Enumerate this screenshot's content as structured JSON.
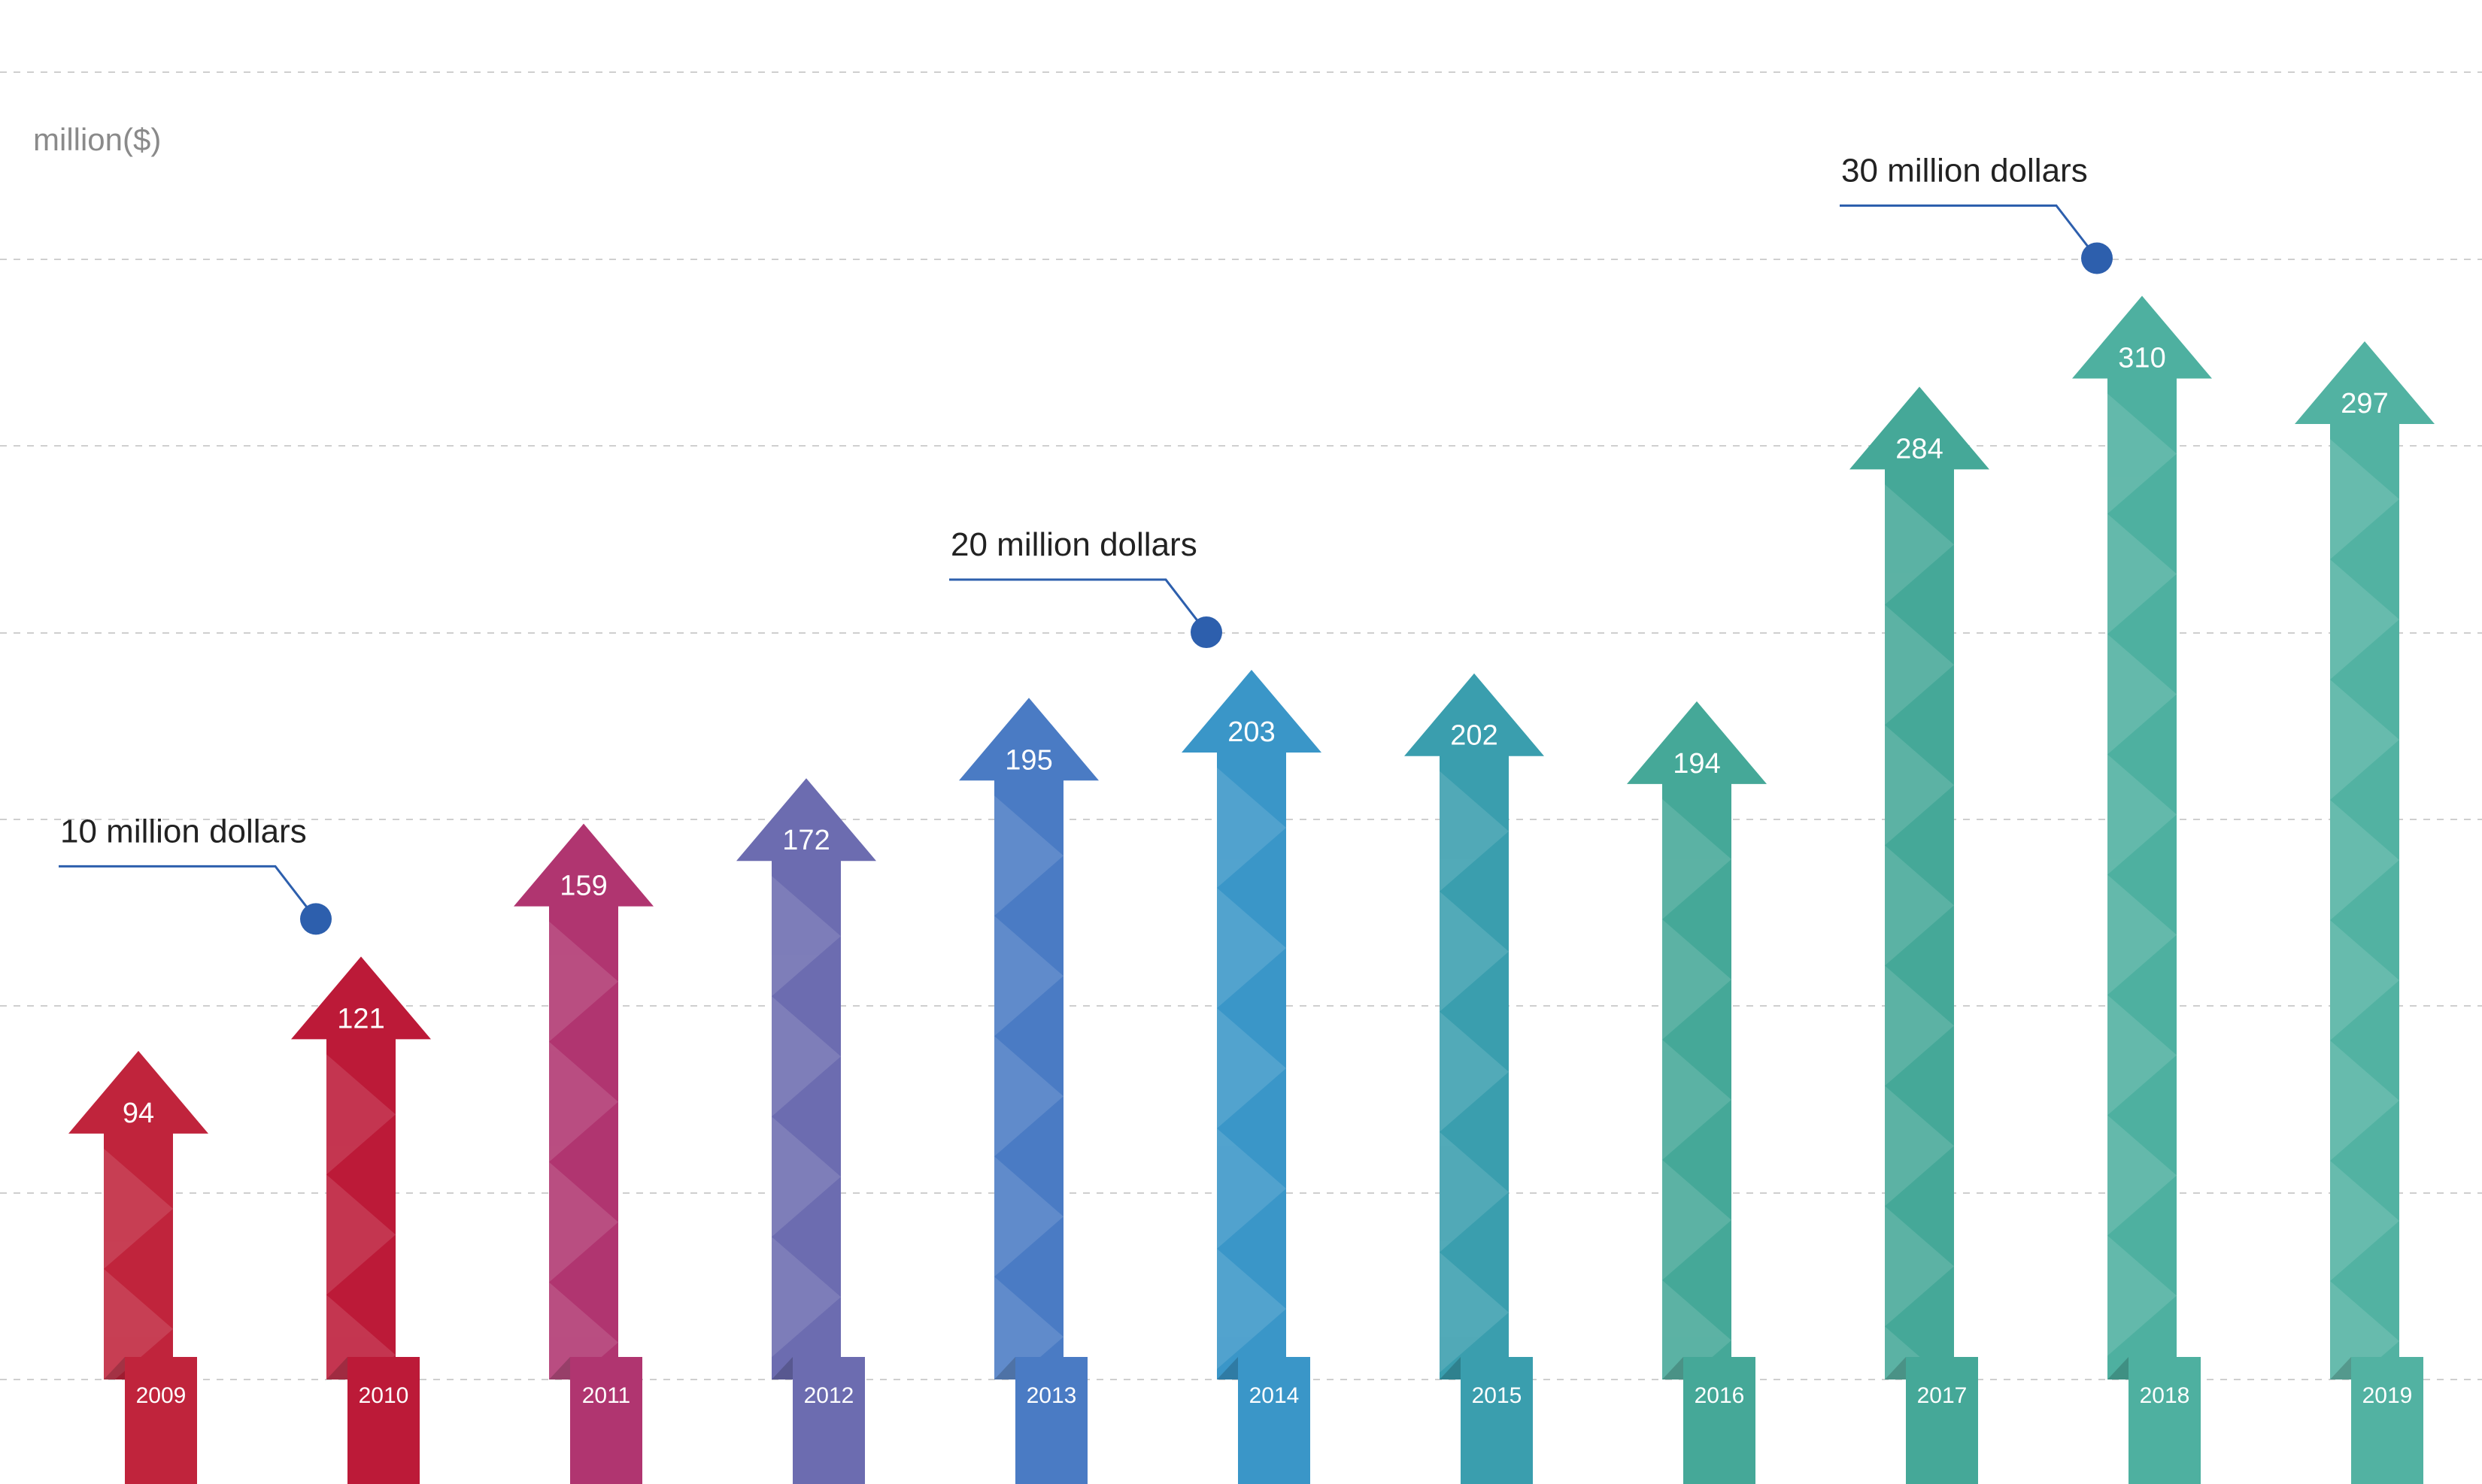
{
  "chart_data": {
    "type": "bar",
    "ylabel": "million($)",
    "ylim": [
      0,
      330
    ],
    "categories": [
      "2009",
      "2010",
      "2011",
      "2012",
      "2013",
      "2014",
      "2015",
      "2016",
      "2017",
      "2018",
      "2019"
    ],
    "values": [
      94,
      121,
      159,
      172,
      195,
      203,
      202,
      194,
      284,
      310,
      297
    ],
    "value_labels": [
      "94",
      "121",
      "159",
      "172",
      "195",
      "203",
      "202",
      "194",
      "284",
      "310",
      "297"
    ],
    "colors": [
      "#c0243c",
      "#bc1a38",
      "#b03570",
      "#6c6cb0",
      "#4a7bc4",
      "#3a96c8",
      "#3a9eae",
      "#45a898",
      "#45a898",
      "#4eb0a0",
      "#52b2a2"
    ],
    "annotations": [
      {
        "text": "10 million dollars",
        "category": "2010",
        "value": 121
      },
      {
        "text": "20 million dollars",
        "category": "2014",
        "value": 203
      },
      {
        "text": "30 million dollars",
        "category": "2018",
        "value": 310
      }
    ],
    "grid": true,
    "annotation_color": "#2d5fad"
  }
}
